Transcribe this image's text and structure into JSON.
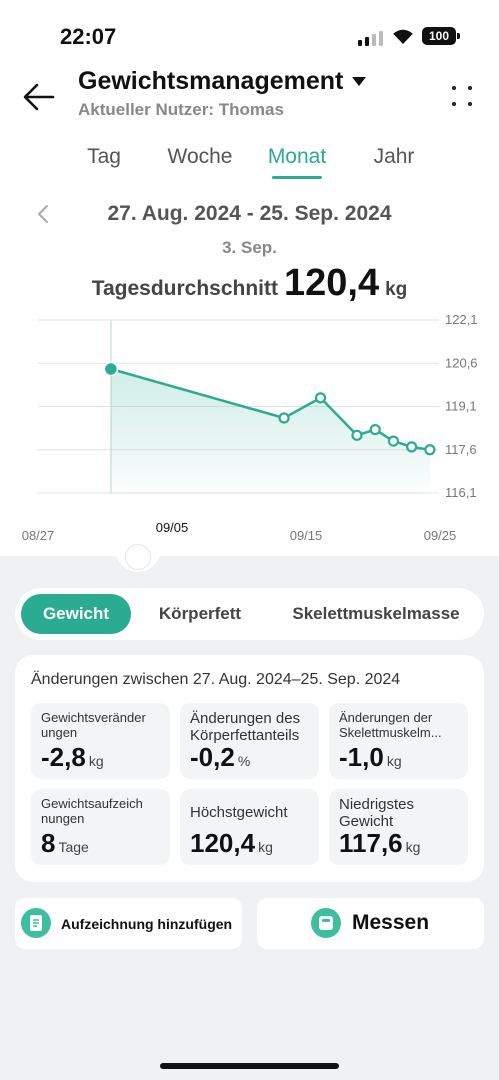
{
  "status_bar": {
    "time": "22:07",
    "battery": "100"
  },
  "header": {
    "title": "Gewichtsmanagement",
    "subtitle": "Aktueller Nutzer: Thomas"
  },
  "period_tabs": [
    {
      "label": "Tag"
    },
    {
      "label": "Woche"
    },
    {
      "label": "Monat"
    },
    {
      "label": "Jahr"
    }
  ],
  "period": {
    "range": "27. Aug. 2024 - 25. Sep. 2024",
    "selected_day": "3. Sep.",
    "avg_label": "Tagesdurchschnitt",
    "avg_value": "120,4",
    "avg_unit": "kg"
  },
  "chart_data": {
    "type": "line",
    "x_tick_labels": [
      "08/27",
      "09/05",
      "09/15",
      "09/25"
    ],
    "y_tick_labels": [
      "122,1",
      "120,6",
      "119,1",
      "117,6",
      "116,1"
    ],
    "ylim": [
      116.1,
      122.1
    ],
    "series": [
      {
        "points": [
          {
            "day": 8,
            "value": 120.4
          },
          {
            "day": 27,
            "value": 118.7
          },
          {
            "day": 31,
            "value": 119.4
          },
          {
            "day": 35,
            "value": 118.1
          },
          {
            "day": 37,
            "value": 118.3
          },
          {
            "day": 39,
            "value": 117.9
          },
          {
            "day": 41,
            "value": 117.7
          },
          {
            "day": 43,
            "value": 117.6
          }
        ]
      }
    ],
    "selected_point_index": 0,
    "accent_color": "#2aab92"
  },
  "metric_tabs": [
    {
      "label": "Gewicht"
    },
    {
      "label": "Körperfett"
    },
    {
      "label": "Skelettmuskelmasse"
    }
  ],
  "summary": {
    "title": "Änderungen zwischen 27. Aug. 2024–25. Sep. 2024",
    "stats": [
      {
        "label": "Gewichtsveränder ungen",
        "value": "-2,8",
        "unit": "kg"
      },
      {
        "label": "Änderungen des Körperfettanteils",
        "value": "-0,2",
        "unit": "%"
      },
      {
        "label": "Änderungen der Skelettmuskelm...",
        "value": "-1,0",
        "unit": "kg"
      },
      {
        "label": "Gewichtsaufzeich nungen",
        "value": "8",
        "unit": "Tage"
      },
      {
        "label": "Höchstgewicht",
        "value": "120,4",
        "unit": "kg"
      },
      {
        "label": "Niedrigstes Gewicht",
        "value": "117,6",
        "unit": "kg"
      }
    ]
  },
  "actions": {
    "add_label": "Aufzeichnung hinzufügen",
    "measure_label": "Messen"
  },
  "icons": {
    "back": "back-arrow-icon",
    "menu": "more-dots-icon",
    "add": "note-edit-icon",
    "measure": "scale-icon"
  },
  "colors": {
    "accent": "#2aab92",
    "background_lower": "#f0f1f3"
  }
}
